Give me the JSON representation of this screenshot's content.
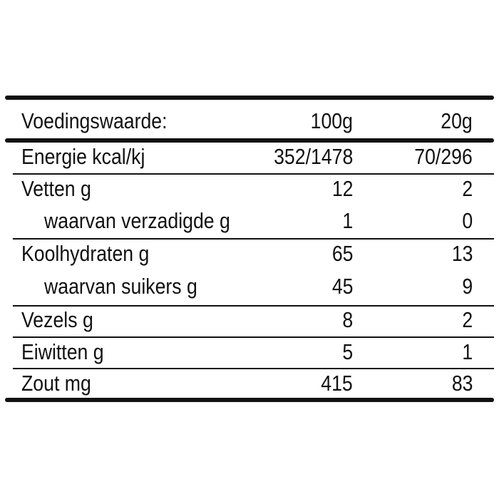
{
  "header": {
    "label": "Voedingswaarde:",
    "col1": "100g",
    "col2": "20g"
  },
  "rows": [
    {
      "label": "Energie kcal/kj",
      "col1": "352/1478",
      "col2": "70/296",
      "indent": false
    },
    {
      "label": "Vetten g",
      "col1": "12",
      "col2": "2",
      "indent": false
    },
    {
      "label": "waarvan verzadigde g",
      "col1": "1",
      "col2": "0",
      "indent": true
    },
    {
      "label": "Koolhydraten g",
      "col1": "65",
      "col2": "13",
      "indent": false
    },
    {
      "label": "waarvan suikers g",
      "col1": "45",
      "col2": "9",
      "indent": true
    },
    {
      "label": "Vezels g",
      "col1": "8",
      "col2": "2",
      "indent": false
    },
    {
      "label": "Eiwitten g",
      "col1": "5",
      "col2": "1",
      "indent": false
    },
    {
      "label": "Zout mg",
      "col1": "415",
      "col2": "83",
      "indent": false
    }
  ]
}
